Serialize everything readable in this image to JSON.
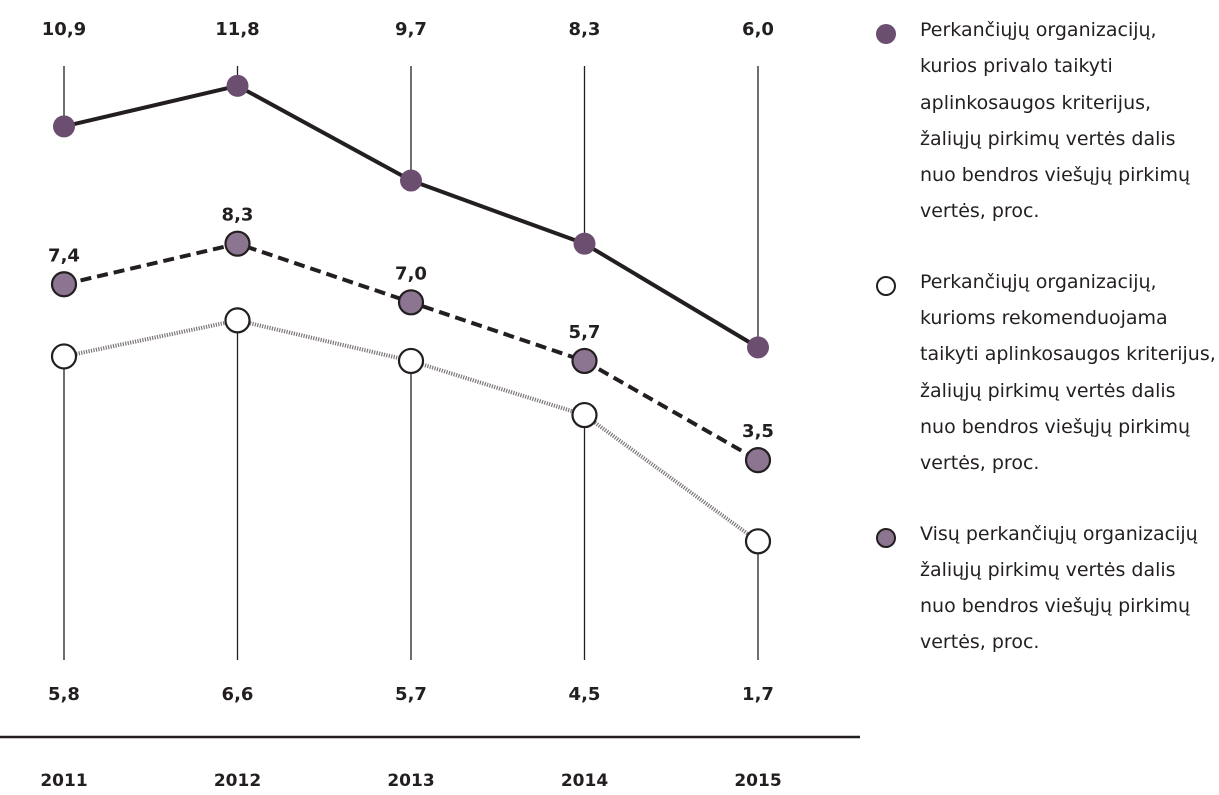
{
  "colors": {
    "mandatory": "#6b4e70",
    "all": "#8b7590",
    "recommended": "#ffffff",
    "line": "#231f20",
    "text": "#231f20"
  },
  "legend": [
    {
      "series": "mandatory",
      "label": "Perkančiųjų organizacijų, kurios privalo taikyti aplinkosaugos kriterijus, žaliųjų pirkimų vertės dalis nuo bendros viešųjų pirkimų vertės, proc."
    },
    {
      "series": "recommended",
      "label": "Perkančiųjų organizacijų, kurioms rekomenduojama taikyti aplinkosaugos kriterijus, žaliųjų pirkimų vertės dalis nuo bendros viešųjų pirkimų vertės, proc."
    },
    {
      "series": "all",
      "label": "Visų perkančiųjų organizacijų žaliųjų pirkimų vertės dalis nuo bendros viešųjų pirkimų vertės, proc."
    }
  ],
  "chart_data": {
    "type": "line",
    "x": [
      "2011",
      "2012",
      "2013",
      "2014",
      "2015"
    ],
    "series": [
      {
        "key": "mandatory",
        "values": [
          10.9,
          11.8,
          9.7,
          8.3,
          6.0
        ],
        "labels": [
          "10,9",
          "11,8",
          "9,7",
          "8,3",
          "6,0"
        ],
        "line_style": "solid",
        "label_position": "top-row"
      },
      {
        "key": "all",
        "values": [
          7.4,
          8.3,
          7.0,
          5.7,
          3.5
        ],
        "labels": [
          "7,4",
          "8,3",
          "7,0",
          "5,7",
          "3,5"
        ],
        "line_style": "dashed",
        "label_position": "above-point"
      },
      {
        "key": "recommended",
        "values": [
          5.8,
          6.6,
          5.7,
          4.5,
          1.7
        ],
        "labels": [
          "5,8",
          "6,6",
          "5,7",
          "4,5",
          "1,7"
        ],
        "line_style": "dotted",
        "label_position": "bottom-row"
      }
    ],
    "grid": false,
    "legend_position": "right"
  }
}
